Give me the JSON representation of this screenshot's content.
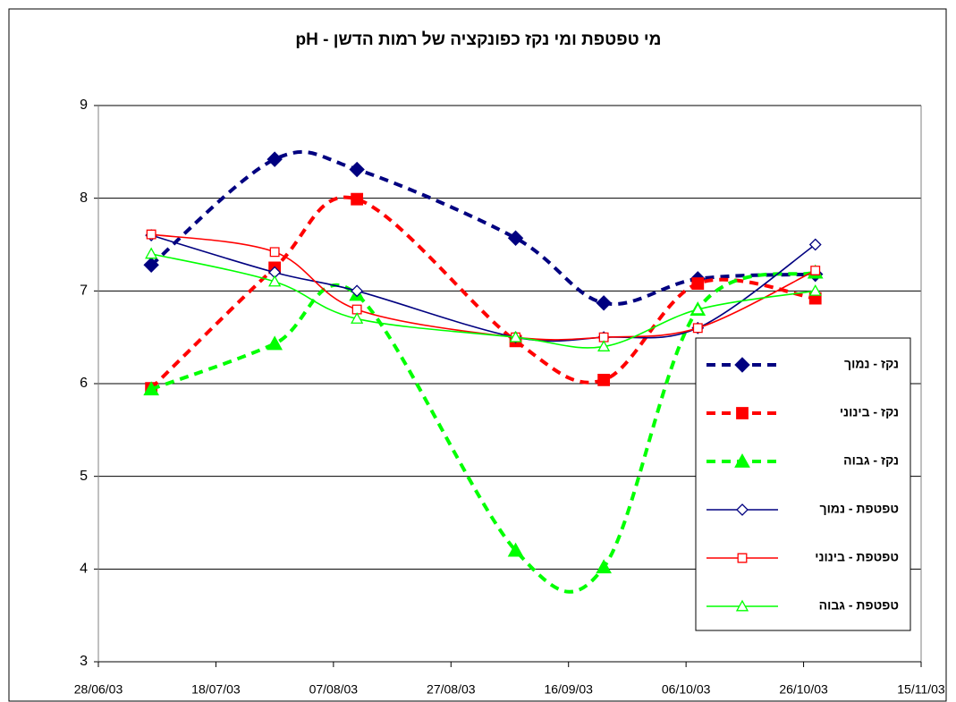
{
  "chart_data": {
    "type": "line",
    "title": "מי טפטפת ומי נקז כפונקציה של רמות הדשן - pH",
    "x": [
      "07/07/03",
      "28/07/03",
      "11/08/03",
      "07/09/03",
      "22/09/03",
      "08/10/03",
      "28/10/03"
    ],
    "xlim": [
      "28/06/03",
      "15/11/03"
    ],
    "xticks": [
      "28/06/03",
      "18/07/03",
      "07/08/03",
      "27/08/03",
      "16/09/03",
      "06/10/03",
      "26/10/03",
      "15/11/03"
    ],
    "ylim": [
      3,
      9
    ],
    "yticks": [
      3,
      4,
      5,
      6,
      7,
      8,
      9
    ],
    "grid": true,
    "legend": "right",
    "series": [
      {
        "name": "נקז - נמוך",
        "color": "#000080",
        "dash": true,
        "marker": "diamond",
        "filled": true,
        "values": [
          7.28,
          8.42,
          8.31,
          7.57,
          6.87,
          7.13,
          7.18
        ]
      },
      {
        "name": "נקז - בינוני",
        "color": "#ff0000",
        "dash": true,
        "marker": "square",
        "filled": true,
        "values": [
          5.95,
          7.25,
          7.99,
          6.46,
          6.04,
          7.08,
          6.92
        ]
      },
      {
        "name": "נקז - גבוה",
        "color": "#00ff00",
        "dash": true,
        "marker": "triangle",
        "filled": true,
        "values": [
          5.94,
          6.43,
          6.96,
          4.2,
          4.02,
          6.8,
          7.2
        ]
      },
      {
        "name": "טפטפת - נמוך",
        "color": "#000080",
        "dash": false,
        "marker": "diamond",
        "filled": false,
        "values": [
          7.6,
          7.2,
          7.0,
          6.5,
          6.5,
          6.6,
          7.5
        ]
      },
      {
        "name": "טפטפת - בינוני",
        "color": "#ff0000",
        "dash": false,
        "marker": "square",
        "filled": false,
        "values": [
          7.61,
          7.42,
          6.8,
          6.5,
          6.5,
          6.6,
          7.22
        ]
      },
      {
        "name": "טפטפת - גבוה",
        "color": "#00ff00",
        "dash": false,
        "marker": "triangle",
        "filled": false,
        "values": [
          7.4,
          7.1,
          6.7,
          6.5,
          6.4,
          6.8,
          7.0
        ]
      }
    ]
  }
}
